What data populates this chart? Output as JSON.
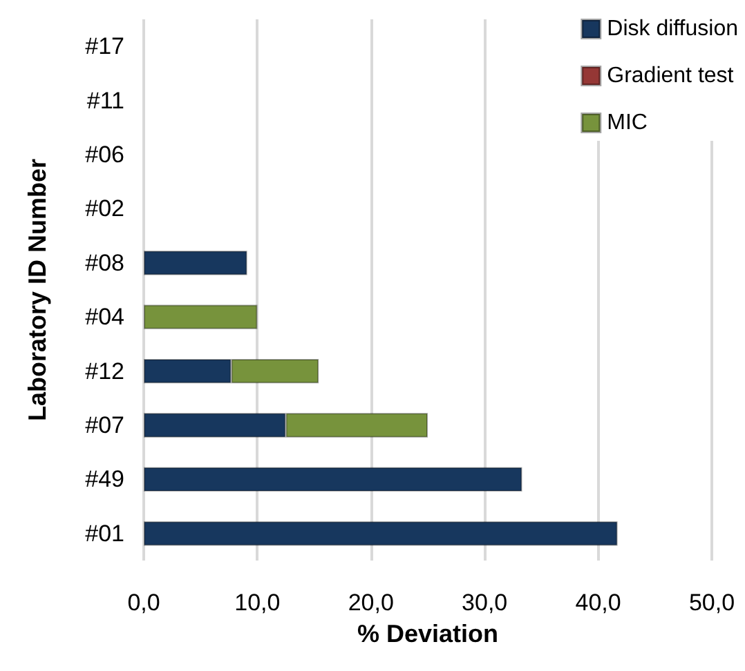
{
  "chart_data": {
    "type": "bar",
    "orientation": "horizontal",
    "stacked": true,
    "xlabel": "% Deviation",
    "ylabel": "Laboratory ID Number",
    "categories": [
      "#17",
      "#11",
      "#06",
      "#02",
      "#08",
      "#04",
      "#12",
      "#07",
      "#49",
      "#01"
    ],
    "series": [
      {
        "name": "Disk diffusion",
        "color": "#17375e",
        "values": [
          null,
          null,
          null,
          null,
          9.1,
          null,
          7.7,
          12.5,
          33.3,
          41.7
        ]
      },
      {
        "name": "Gradient test",
        "color": "#953735",
        "values": [
          null,
          null,
          null,
          null,
          null,
          null,
          null,
          null,
          null,
          null
        ]
      },
      {
        "name": "MIC",
        "color": "#77933c",
        "values": [
          null,
          null,
          null,
          null,
          null,
          10.0,
          7.7,
          12.5,
          null,
          null
        ]
      }
    ],
    "xlim": [
      0,
      50
    ],
    "xticks": [
      {
        "value": 0,
        "label": "0,0"
      },
      {
        "value": 10,
        "label": "10,0"
      },
      {
        "value": 20,
        "label": "20,0"
      },
      {
        "value": 30,
        "label": "30,0"
      },
      {
        "value": 40,
        "label": "40,0"
      },
      {
        "value": 50,
        "label": "50,0"
      }
    ],
    "grid": "x",
    "legend": "top right"
  }
}
